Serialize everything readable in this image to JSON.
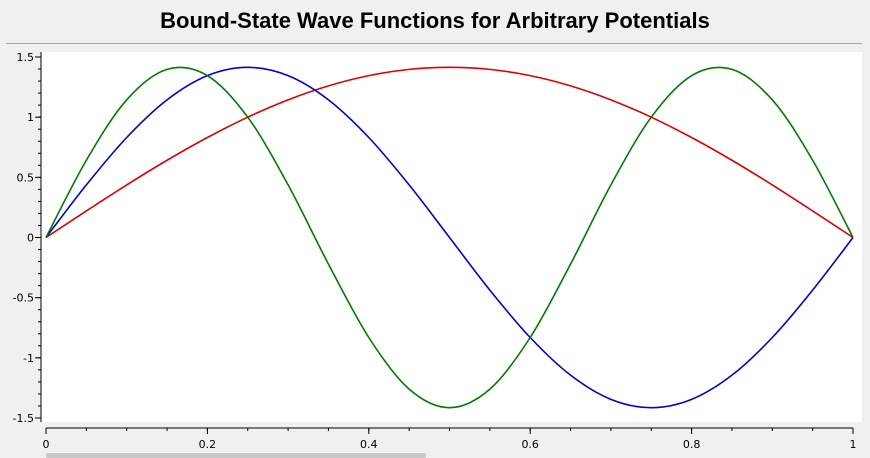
{
  "window": {
    "title": "Bound-State Wave Functions for Arbitrary Potentials"
  },
  "chart_data": {
    "type": "line",
    "title": "Bound-State Wave Functions for Arbitrary Potentials",
    "xlabel": "",
    "ylabel": "",
    "xlim": [
      0,
      1
    ],
    "ylim": [
      -1.5,
      1.5
    ],
    "x_ticks": [
      0,
      0.2,
      0.4,
      0.6,
      0.8,
      1
    ],
    "x_tick_labels": [
      "0",
      "0.2",
      "0.4",
      "0.6",
      "0.8",
      "1"
    ],
    "y_ticks": [
      1.5,
      1,
      0.5,
      0,
      -0.5,
      -1,
      -1.5
    ],
    "y_tick_labels": [
      "1.5",
      "1",
      "0.5",
      "0",
      "-0.5",
      "-1",
      "-1.5"
    ],
    "grid": false,
    "x": [
      0,
      0.05,
      0.1,
      0.15,
      0.2,
      0.25,
      0.3,
      0.35,
      0.4,
      0.45,
      0.5,
      0.55,
      0.6,
      0.65,
      0.7,
      0.75,
      0.8,
      0.85,
      0.9,
      0.95,
      1
    ],
    "series": [
      {
        "color": "#e00000",
        "values": [
          0,
          0.221,
          0.437,
          0.642,
          0.831,
          1.0,
          1.144,
          1.26,
          1.345,
          1.397,
          1.414,
          1.397,
          1.345,
          1.26,
          1.144,
          1.0,
          0.831,
          0.642,
          0.437,
          0.221,
          0
        ]
      },
      {
        "color": "#0000d8",
        "values": [
          0,
          0.437,
          0.831,
          1.144,
          1.345,
          1.414,
          1.345,
          1.144,
          0.831,
          0.437,
          0,
          -0.437,
          -0.831,
          -1.144,
          -1.345,
          -1.414,
          -1.345,
          -1.144,
          -0.831,
          -0.437,
          0
        ]
      },
      {
        "color": "#007a00",
        "values": [
          0,
          0.642,
          1.144,
          1.397,
          1.345,
          1.0,
          0.437,
          -0.221,
          -0.831,
          -1.26,
          -1.414,
          -1.26,
          -0.831,
          -0.221,
          0.437,
          1.0,
          1.345,
          1.397,
          1.144,
          0.642,
          0
        ]
      }
    ]
  }
}
